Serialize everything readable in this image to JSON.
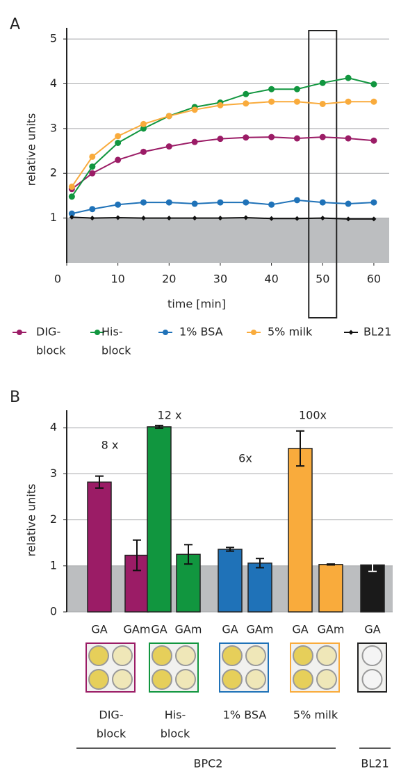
{
  "chart_data": [
    {
      "type": "line",
      "panel_label": "A",
      "ylabel": "relative units",
      "xlabel": "time [min]",
      "x": [
        1,
        5,
        10,
        15,
        20,
        25,
        30,
        35,
        40,
        45,
        50,
        55,
        60
      ],
      "xlim": [
        0,
        63
      ],
      "xticks": [
        0,
        10,
        20,
        30,
        40,
        50,
        60
      ],
      "ylim": [
        0,
        5.25
      ],
      "yticks": [
        1,
        2,
        3,
        4,
        5
      ],
      "grid": true,
      "shaded_below": 1,
      "highlight_x": 50,
      "series": [
        {
          "name": [
            "DIG-",
            "block"
          ],
          "color": "#9b1c66",
          "marker": "circle",
          "values": [
            1.65,
            2.0,
            2.3,
            2.48,
            2.6,
            2.7,
            2.77,
            2.8,
            2.81,
            2.78,
            2.81,
            2.78,
            2.73
          ]
        },
        {
          "name": [
            "His-",
            "block"
          ],
          "color": "#11963f",
          "marker": "circle",
          "values": [
            1.48,
            2.15,
            2.68,
            3.0,
            3.28,
            3.48,
            3.58,
            3.77,
            3.88,
            3.88,
            4.02,
            4.13,
            3.99
          ]
        },
        {
          "name": [
            "1% BSA"
          ],
          "color": "#1f72b8",
          "marker": "circle",
          "values": [
            1.1,
            1.2,
            1.3,
            1.35,
            1.35,
            1.32,
            1.35,
            1.35,
            1.3,
            1.4,
            1.35,
            1.32,
            1.35
          ]
        },
        {
          "name": [
            "5% milk"
          ],
          "color": "#f9ab3c",
          "marker": "circle",
          "values": [
            1.7,
            2.37,
            2.83,
            3.1,
            3.28,
            3.42,
            3.52,
            3.56,
            3.6,
            3.6,
            3.55,
            3.6,
            3.6
          ]
        },
        {
          "name": [
            "BL21"
          ],
          "color": "#111111",
          "marker": "diamond",
          "values": [
            1.02,
            1.0,
            1.01,
            1.0,
            1.0,
            1.0,
            1.0,
            1.01,
            0.99,
            0.99,
            1.0,
            0.98,
            0.98
          ]
        }
      ]
    },
    {
      "type": "bar",
      "panel_label": "B",
      "ylabel": "relative units",
      "ylim": [
        0,
        4.38
      ],
      "yticks": [
        0,
        1,
        2,
        3,
        4
      ],
      "grid": true,
      "shaded_below": 1,
      "categories": [
        "GA",
        "GAm",
        "GA",
        "GAm",
        "GA",
        "GAm",
        "GA",
        "GAm",
        "GA"
      ],
      "values": [
        2.82,
        1.23,
        4.02,
        1.25,
        1.36,
        1.06,
        3.55,
        1.03,
        1.02
      ],
      "errors": [
        0.13,
        0.33,
        0.03,
        0.21,
        0.04,
        0.1,
        0.38,
        0.01,
        0.14
      ],
      "colors": [
        "#9b1c66",
        "#9b1c66",
        "#11963f",
        "#11963f",
        "#1f72b8",
        "#1f72b8",
        "#f9ab3c",
        "#f9ab3c",
        "#1a1a1a"
      ],
      "error_colors": [
        "#111111",
        "#111111",
        "#111111",
        "#111111",
        "#111111",
        "#111111",
        "#111111",
        "#111111",
        "#ffffff"
      ],
      "groups": [
        {
          "name": [
            "DIG-",
            "block"
          ],
          "annotation": "8 x"
        },
        {
          "name": [
            "His-",
            "block"
          ],
          "annotation": "12 x"
        },
        {
          "name": [
            "1% BSA"
          ],
          "annotation": "6x"
        },
        {
          "name": [
            "5% milk"
          ],
          "annotation": "100x"
        }
      ],
      "brackets": [
        "BPC2",
        "BL21"
      ]
    }
  ]
}
